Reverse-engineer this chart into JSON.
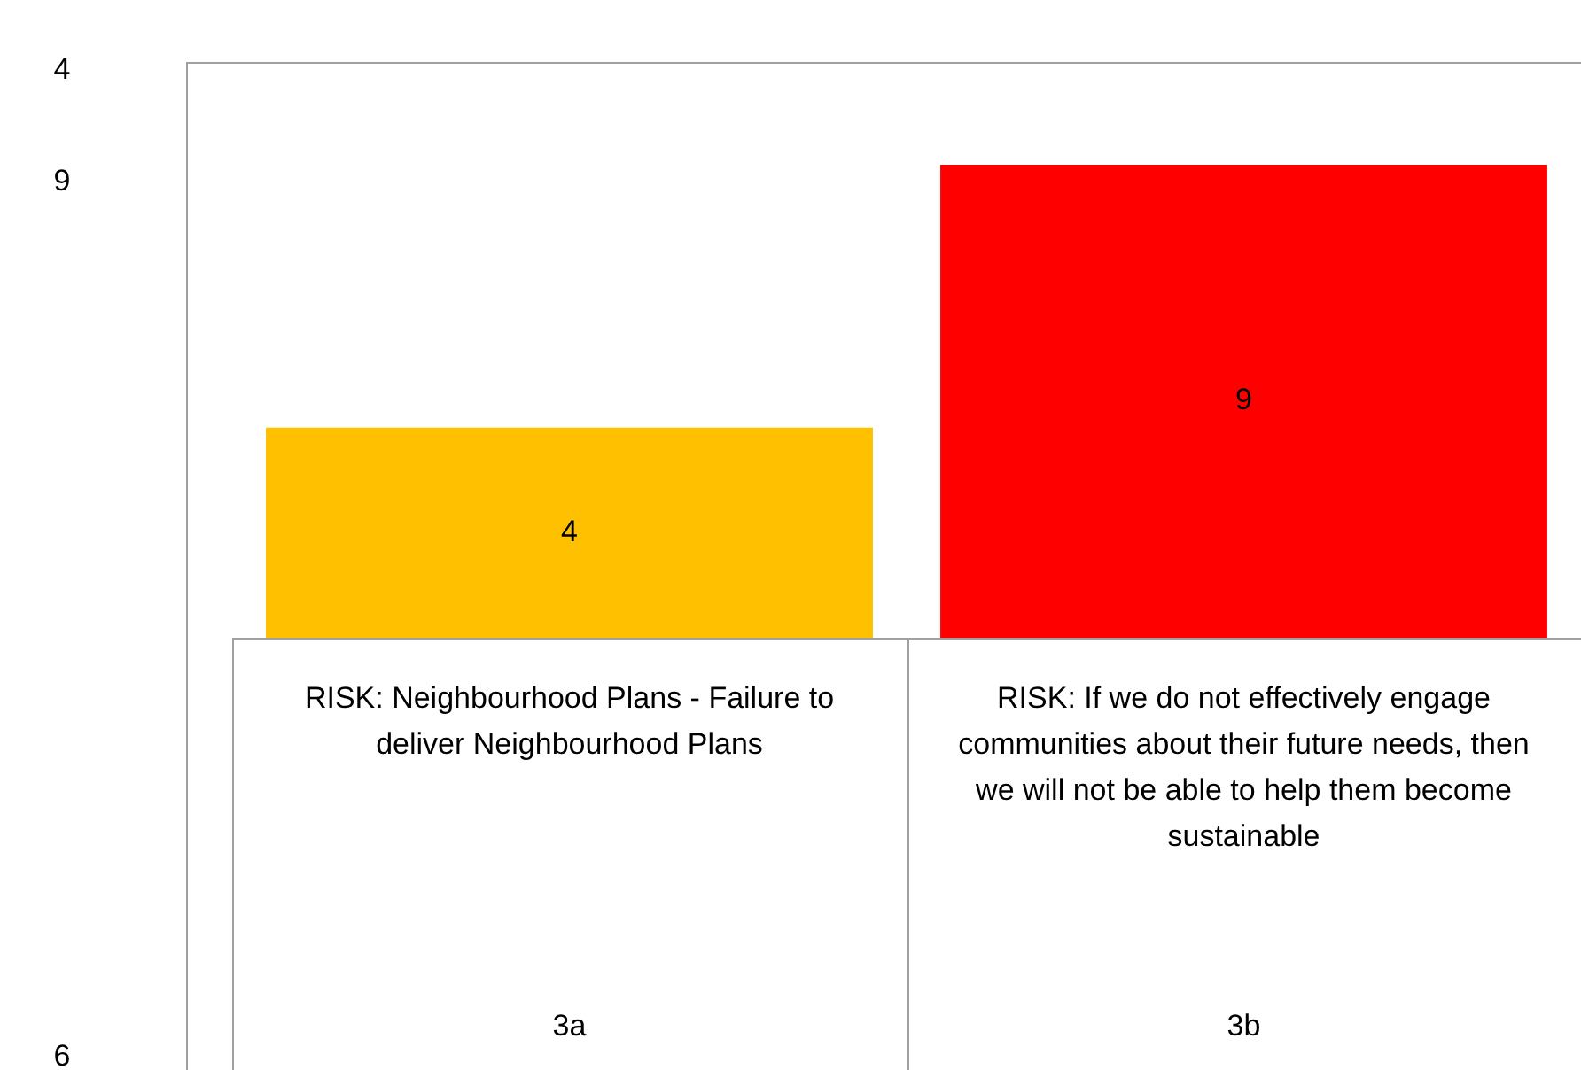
{
  "chart_data": {
    "type": "bar",
    "categories": [
      "RISK: Neighbourhood Plans - Failure to deliver Neighbourhood Plans",
      "RISK: If we do not effectively engage communities about their future needs, then we will not be able to help them become sustainable"
    ],
    "values": [
      4,
      9
    ],
    "colors": [
      "#ffc000",
      "#ff0000"
    ],
    "data_labels": true,
    "legend": false,
    "annotations": [
      "4",
      "9",
      "6",
      "3a",
      "3b"
    ]
  }
}
